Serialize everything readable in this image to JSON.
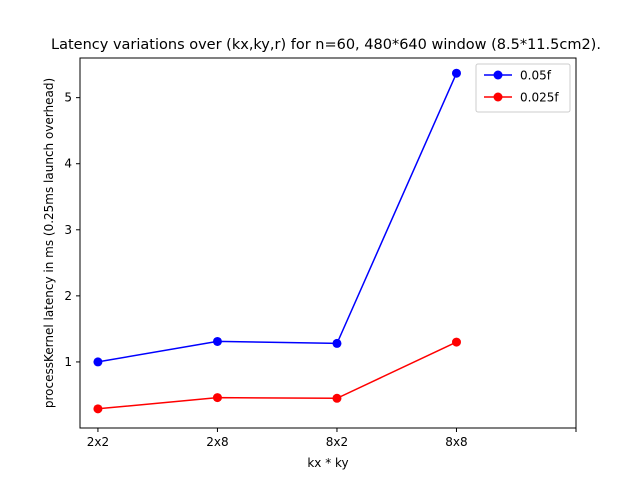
{
  "chart_data": {
    "type": "line",
    "title": "Latency variations over (kx,ky,r) for n=60, 480*640 window (8.5*11.5cm2).",
    "xlabel": "kx * ky",
    "ylabel": "processKernel latency in ms (0.25ms launch overhead)",
    "categories": [
      "2x2",
      "2x8",
      "8x2",
      "8x8"
    ],
    "x_tick_labels": [
      "2x2",
      "2x8",
      "8x2",
      "8x8",
      ""
    ],
    "xlim": [
      -0.15,
      4
    ],
    "ylim": [
      0,
      5.6
    ],
    "yticks": [
      1,
      2,
      3,
      4,
      5
    ],
    "grid": false,
    "legend_position": "top-right",
    "series": [
      {
        "name": "0.05f",
        "color": "#0000ff",
        "values": [
          1.0,
          1.31,
          1.28,
          5.37
        ]
      },
      {
        "name": "0.025f",
        "color": "#ff0000",
        "values": [
          0.29,
          0.46,
          0.45,
          1.3
        ]
      }
    ]
  }
}
